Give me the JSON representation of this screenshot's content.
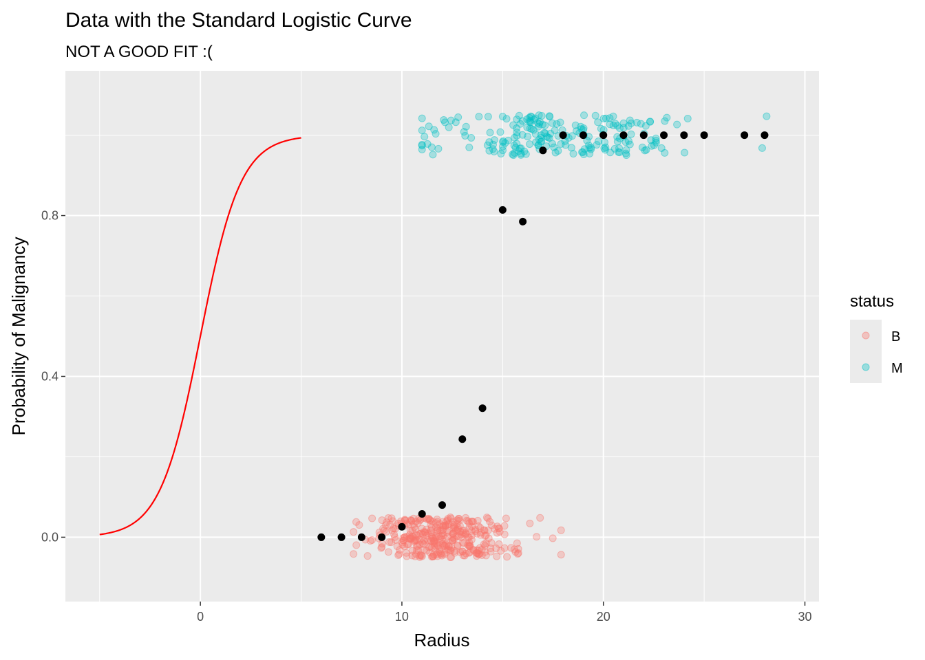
{
  "chart_data": {
    "type": "scatter",
    "title": "Data with the Standard Logistic Curve",
    "subtitle": "NOT A GOOD FIT :(",
    "xlabel": "Radius",
    "ylabel": "Probability of Malignancy",
    "xlim": [
      -6.7,
      30.7
    ],
    "ylim": [
      -0.16,
      1.16
    ],
    "x_ticks": [
      0,
      10,
      20,
      30
    ],
    "x_tick_labels": [
      "0",
      "10",
      "20",
      "30"
    ],
    "y_ticks": [
      0.0,
      0.4,
      0.8
    ],
    "y_tick_labels": [
      "0.0",
      "0.4",
      "0.8"
    ],
    "grid": true,
    "legend": {
      "title": "status",
      "placement": "right",
      "entries": [
        {
          "label": "B",
          "color": "#F8766D"
        },
        {
          "label": "M",
          "color": "#00BFC4"
        }
      ]
    },
    "jittered_points": [
      {
        "status": "B",
        "color": "#F8766D",
        "count": 357,
        "y_center": 0,
        "x_mean": 12.1,
        "x_sd": 1.8,
        "x_range": [
          7.6,
          17.9
        ],
        "y_jitter": 0.05
      },
      {
        "status": "M",
        "color": "#00BFC4",
        "count": 212,
        "y_center": 1,
        "x_mean": 17.4,
        "x_sd": 3.2,
        "x_range": [
          11,
          28.1
        ],
        "y_jitter": 0.05
      }
    ],
    "proportion_points": {
      "color": "#000000",
      "x": [
        6,
        7,
        8,
        9,
        10,
        11,
        12,
        13,
        14,
        15,
        16,
        17,
        18,
        19,
        20,
        21,
        22,
        23,
        24,
        25,
        27,
        28
      ],
      "y": [
        0,
        0,
        0,
        0,
        0.026,
        0.058,
        0.08,
        0.244,
        0.321,
        0.814,
        0.785,
        0.962,
        1,
        1,
        1,
        1,
        1,
        1,
        1,
        1,
        1,
        1
      ]
    },
    "curve": {
      "name": "standard logistic",
      "color": "#FF0000",
      "x_range": [
        -5,
        5
      ]
    }
  }
}
